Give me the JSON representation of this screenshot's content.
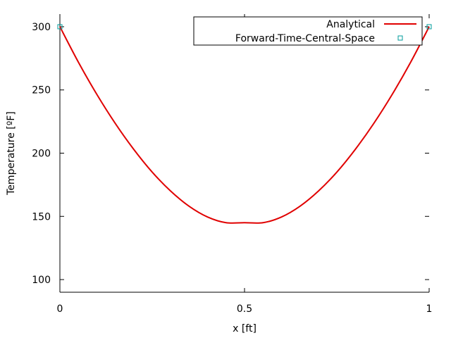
{
  "chart_data": {
    "type": "line",
    "xlabel": "x [ft]",
    "ylabel": "Temperature [ºF]",
    "xlim": [
      0,
      1
    ],
    "ylim": [
      90,
      310
    ],
    "x_ticks": [
      {
        "value": 0,
        "label": "0"
      },
      {
        "value": 0.5,
        "label": "0.5"
      },
      {
        "value": 1,
        "label": "1"
      }
    ],
    "y_ticks": [
      {
        "value": 100,
        "label": "100"
      },
      {
        "value": 150,
        "label": "150"
      },
      {
        "value": 200,
        "label": "200"
      },
      {
        "value": 250,
        "label": "250"
      },
      {
        "value": 300,
        "label": "300"
      }
    ],
    "grid": false,
    "legend_position": "top-right",
    "series": [
      {
        "name": "Analytical",
        "kind": "line",
        "color": "#e00000",
        "x": [
          0,
          0.05,
          0.1,
          0.15,
          0.2,
          0.25,
          0.3,
          0.35,
          0.4,
          0.45,
          0.5,
          0.55,
          0.6,
          0.65,
          0.7,
          0.75,
          0.8,
          0.85,
          0.9,
          0.95,
          1
        ],
        "y": [
          300,
          272,
          246.5,
          223.5,
          203,
          185,
          170,
          158,
          149.5,
          145,
          145,
          145,
          149.5,
          158,
          170,
          185,
          203,
          223.5,
          246.5,
          272,
          300
        ]
      },
      {
        "name": "Forward-Time-Central-Space",
        "kind": "scatter",
        "marker": "open-square",
        "color": "#009b9b",
        "x": [
          0,
          1
        ],
        "y": [
          300,
          300
        ]
      }
    ]
  }
}
